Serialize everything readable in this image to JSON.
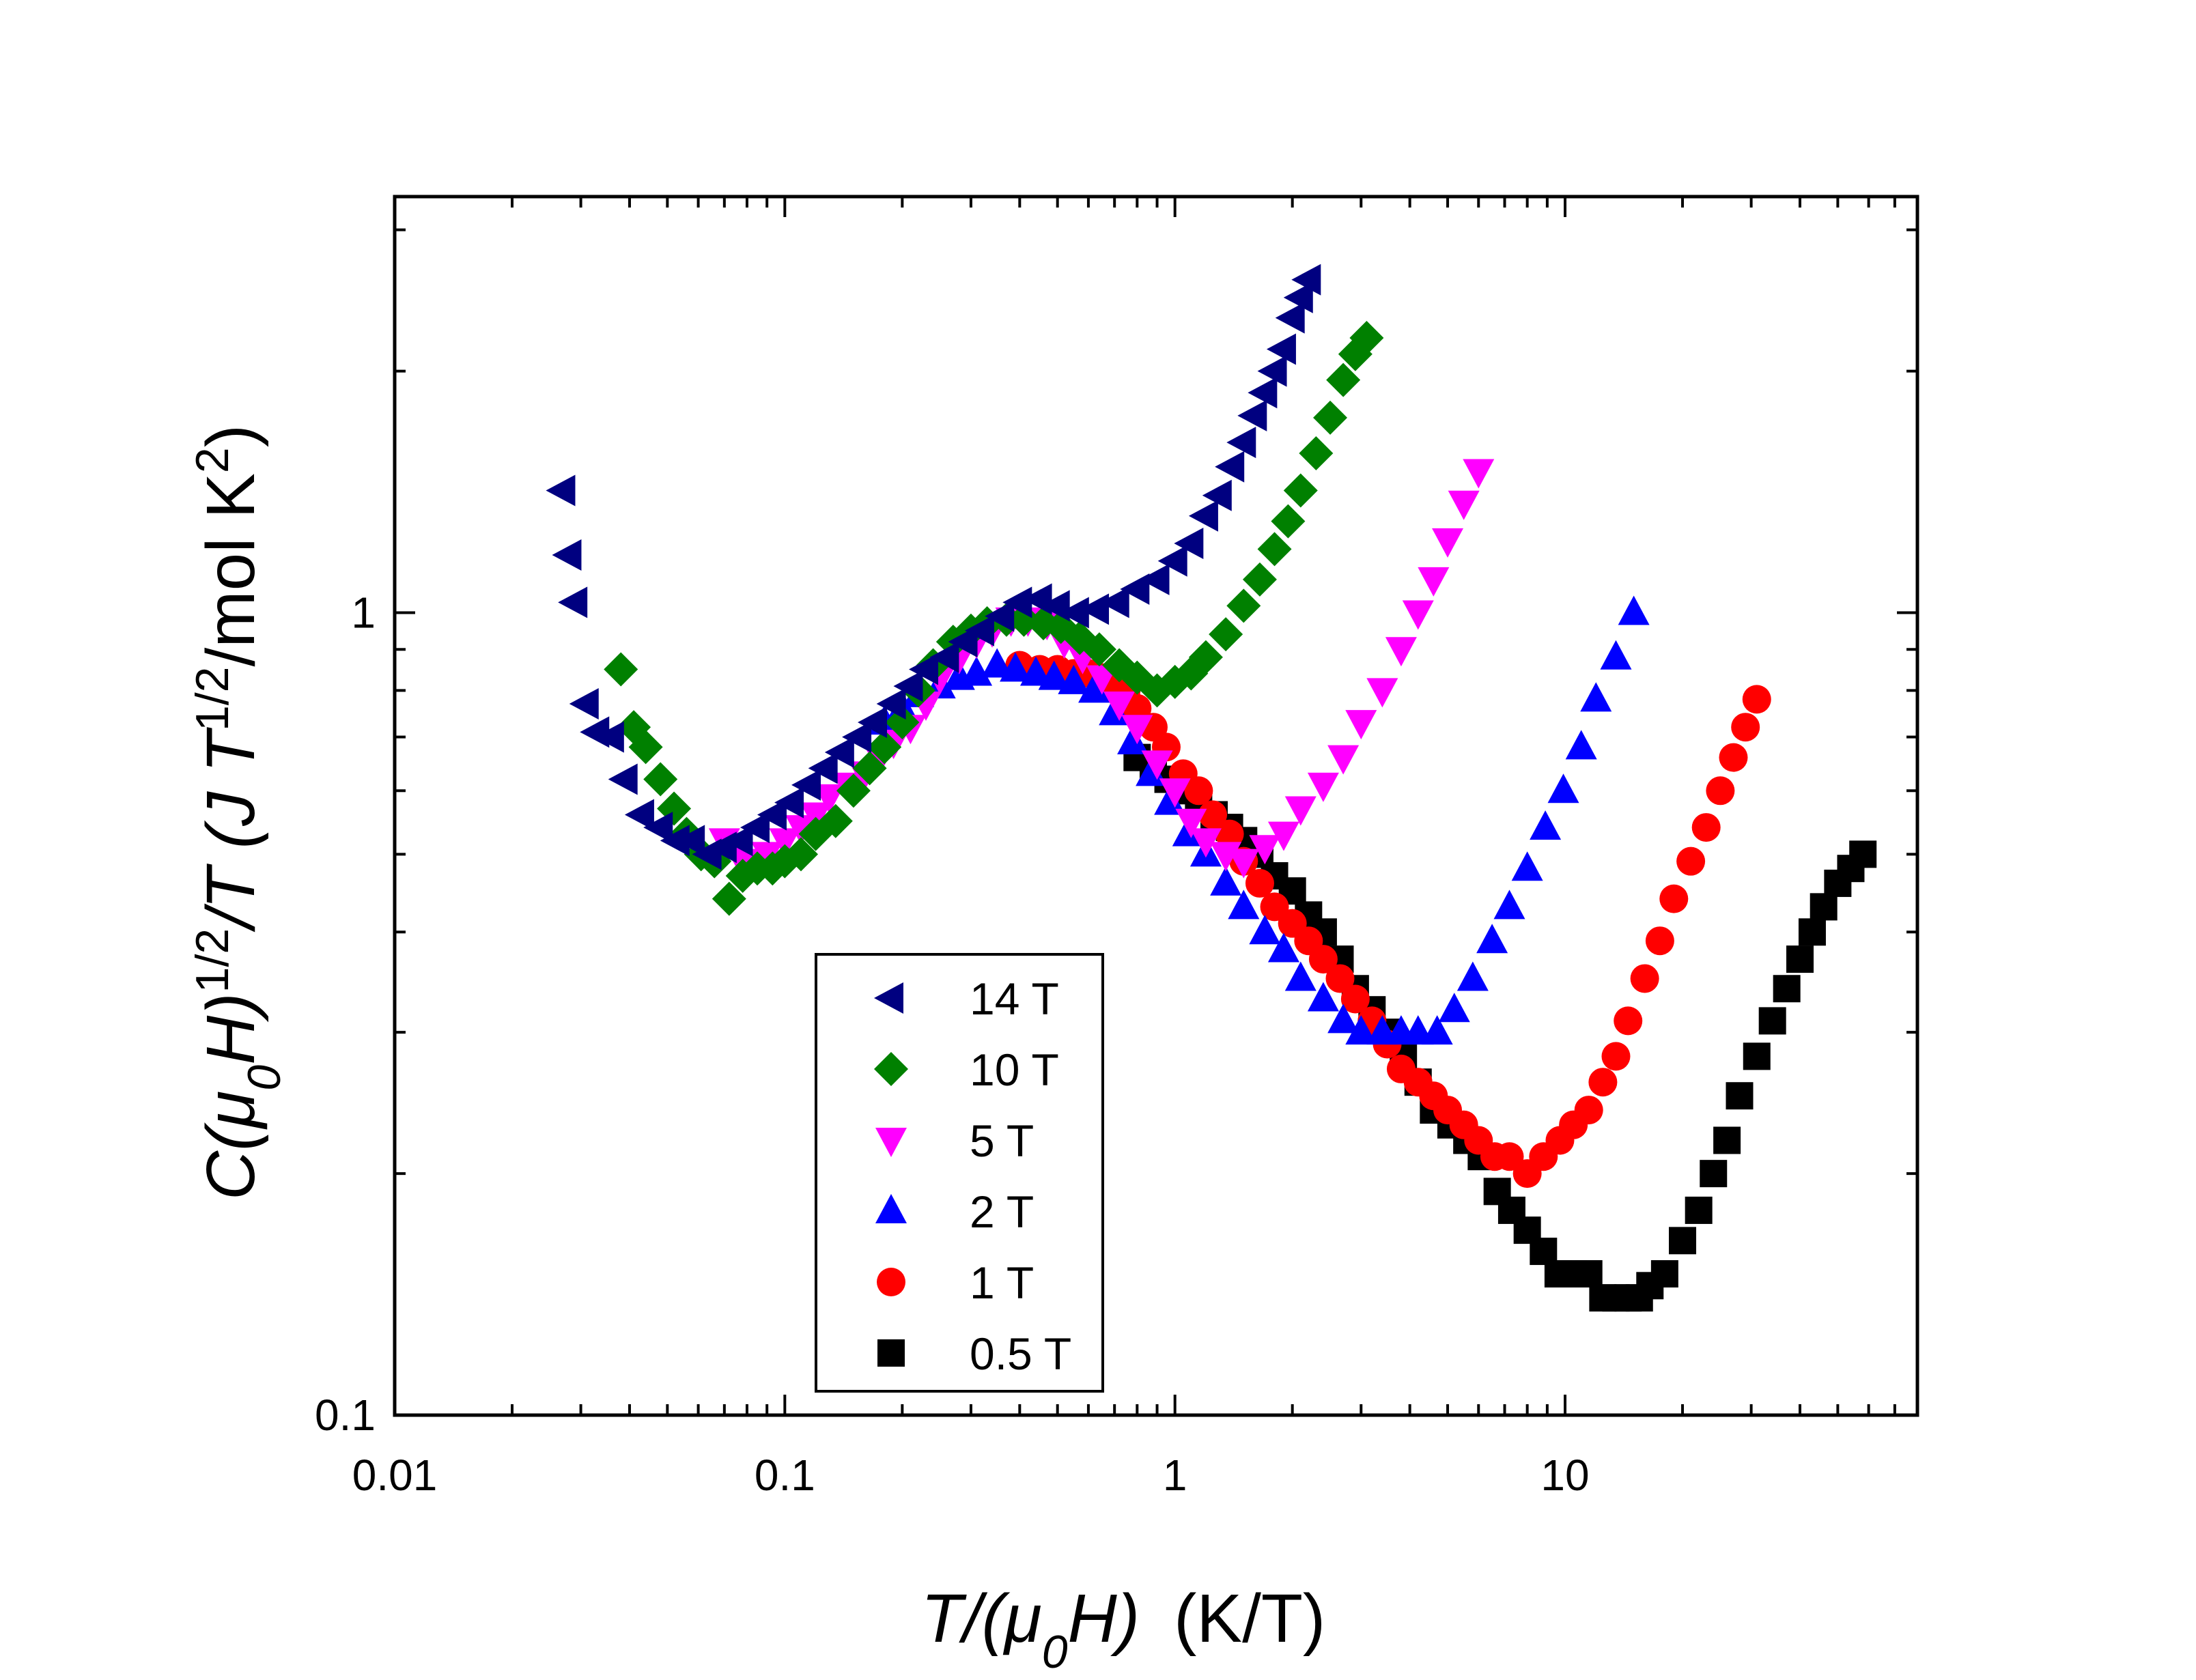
{
  "chart_data": {
    "type": "scatter",
    "title": "",
    "xlabel": {
      "main": "T/(μ",
      "sub": "0",
      "tail": "H)",
      "unit": "(K/T)"
    },
    "ylabel": {
      "p1": "C(μ",
      "sub": "0",
      "p2": "H)",
      "sup": "1/2",
      "p3": "/T (J T",
      "sup2": "1/2",
      "p4": "/mol K",
      "sup3": "2",
      "p5": ")"
    },
    "x_scale": "log",
    "y_scale": "log",
    "xlim": [
      0.01,
      80
    ],
    "ylim": [
      0.1,
      3.3
    ],
    "x_ticks": [
      {
        "value": 0.01,
        "label": "0.01"
      },
      {
        "value": 0.1,
        "label": "0.1"
      },
      {
        "value": 1,
        "label": "1"
      },
      {
        "value": 10,
        "label": "10"
      }
    ],
    "y_ticks": [
      {
        "value": 0.1,
        "label": "0.1"
      },
      {
        "value": 1,
        "label": "1"
      }
    ],
    "grid": false,
    "legend_position": "bottom-center",
    "series": [
      {
        "name": "14 T",
        "marker": "triangle-left",
        "color": "#000080",
        "x": [
          0.027,
          0.028,
          0.029,
          0.031,
          0.033,
          0.036,
          0.039,
          0.043,
          0.048,
          0.053,
          0.058,
          0.064,
          0.07,
          0.077,
          0.085,
          0.094,
          0.104,
          0.115,
          0.127,
          0.14,
          0.155,
          0.17,
          0.19,
          0.21,
          0.23,
          0.26,
          0.29,
          0.32,
          0.36,
          0.4,
          0.45,
          0.5,
          0.56,
          0.63,
          0.71,
          0.8,
          0.9,
          1.0,
          1.1,
          1.2,
          1.3,
          1.4,
          1.5,
          1.6,
          1.7,
          1.8,
          1.9,
          2.0,
          2.1,
          2.2
        ],
        "y": [
          1.42,
          1.18,
          1.03,
          0.77,
          0.71,
          0.7,
          0.62,
          0.56,
          0.54,
          0.52,
          0.52,
          0.5,
          0.51,
          0.52,
          0.54,
          0.56,
          0.58,
          0.61,
          0.64,
          0.67,
          0.7,
          0.73,
          0.77,
          0.81,
          0.85,
          0.88,
          0.92,
          0.95,
          0.99,
          1.03,
          1.04,
          1.02,
          1.0,
          1.01,
          1.03,
          1.07,
          1.1,
          1.16,
          1.22,
          1.32,
          1.4,
          1.52,
          1.63,
          1.76,
          1.88,
          2.0,
          2.13,
          2.33,
          2.47,
          2.6
        ]
      },
      {
        "name": "10 T",
        "marker": "diamond",
        "color": "#008000",
        "x": [
          0.038,
          0.041,
          0.044,
          0.048,
          0.052,
          0.056,
          0.061,
          0.066,
          0.072,
          0.078,
          0.085,
          0.093,
          0.1,
          0.11,
          0.12,
          0.135,
          0.15,
          0.165,
          0.18,
          0.2,
          0.22,
          0.24,
          0.27,
          0.3,
          0.33,
          0.37,
          0.41,
          0.46,
          0.51,
          0.57,
          0.64,
          0.72,
          0.8,
          0.9,
          1.0,
          1.1,
          1.2,
          1.35,
          1.5,
          1.65,
          1.8,
          1.95,
          2.1,
          2.3,
          2.5,
          2.7,
          2.9,
          3.1
        ],
        "y": [
          0.85,
          0.72,
          0.68,
          0.62,
          0.57,
          0.53,
          0.5,
          0.49,
          0.44,
          0.47,
          0.48,
          0.48,
          0.49,
          0.5,
          0.53,
          0.55,
          0.6,
          0.64,
          0.68,
          0.73,
          0.8,
          0.86,
          0.92,
          0.95,
          0.97,
          0.98,
          0.98,
          0.97,
          0.96,
          0.93,
          0.9,
          0.86,
          0.83,
          0.8,
          0.82,
          0.84,
          0.88,
          0.94,
          1.02,
          1.1,
          1.2,
          1.3,
          1.42,
          1.58,
          1.75,
          1.95,
          2.1,
          2.2
        ]
      },
      {
        "name": "5 T",
        "marker": "triangle-down",
        "color": "#ff00ff",
        "x": [
          0.07,
          0.076,
          0.083,
          0.09,
          0.1,
          0.11,
          0.12,
          0.13,
          0.145,
          0.16,
          0.175,
          0.19,
          0.21,
          0.23,
          0.25,
          0.28,
          0.31,
          0.34,
          0.38,
          0.42,
          0.47,
          0.52,
          0.58,
          0.65,
          0.72,
          0.8,
          0.9,
          1.0,
          1.1,
          1.2,
          1.35,
          1.5,
          1.7,
          1.9,
          2.1,
          2.4,
          2.7,
          3.0,
          3.4,
          3.8,
          4.2,
          4.6,
          5.0,
          5.5,
          6.0
        ],
        "y": [
          0.52,
          0.5,
          0.49,
          0.5,
          0.52,
          0.54,
          0.56,
          0.59,
          0.61,
          0.63,
          0.66,
          0.69,
          0.72,
          0.77,
          0.83,
          0.88,
          0.92,
          0.95,
          0.98,
          0.98,
          0.97,
          0.92,
          0.88,
          0.83,
          0.77,
          0.72,
          0.65,
          0.6,
          0.55,
          0.52,
          0.5,
          0.49,
          0.51,
          0.53,
          0.57,
          0.61,
          0.66,
          0.73,
          0.8,
          0.9,
          1.0,
          1.1,
          1.23,
          1.37,
          1.5
        ]
      },
      {
        "name": "2 T",
        "marker": "triangle-up",
        "color": "#0000ff",
        "x": [
          0.18,
          0.2,
          0.22,
          0.25,
          0.28,
          0.31,
          0.35,
          0.39,
          0.44,
          0.49,
          0.55,
          0.62,
          0.7,
          0.78,
          0.87,
          0.97,
          1.08,
          1.2,
          1.35,
          1.5,
          1.7,
          1.9,
          2.1,
          2.4,
          2.7,
          3.0,
          3.4,
          3.8,
          4.2,
          4.7,
          5.2,
          5.8,
          6.5,
          7.2,
          8.0,
          8.9,
          9.9,
          11,
          12,
          13.5,
          15
        ],
        "y": [
          0.73,
          0.76,
          0.79,
          0.81,
          0.83,
          0.84,
          0.86,
          0.85,
          0.84,
          0.83,
          0.82,
          0.8,
          0.75,
          0.69,
          0.63,
          0.58,
          0.53,
          0.5,
          0.46,
          0.43,
          0.4,
          0.38,
          0.35,
          0.33,
          0.31,
          0.3,
          0.3,
          0.3,
          0.3,
          0.3,
          0.32,
          0.35,
          0.39,
          0.43,
          0.48,
          0.54,
          0.6,
          0.68,
          0.78,
          0.88,
          1.0
        ]
      },
      {
        "name": "1 T",
        "marker": "circle",
        "color": "#ff0000",
        "x": [
          0.4,
          0.45,
          0.5,
          0.55,
          0.6,
          0.65,
          0.7,
          0.75,
          0.8,
          0.88,
          0.95,
          1.05,
          1.15,
          1.25,
          1.38,
          1.5,
          1.65,
          1.8,
          2.0,
          2.2,
          2.4,
          2.65,
          2.9,
          3.2,
          3.5,
          3.8,
          4.2,
          4.6,
          5.0,
          5.5,
          6.0,
          6.6,
          7.2,
          8.0,
          8.8,
          9.7,
          10.5,
          11.5,
          12.5,
          13.5,
          14.5,
          16,
          17.5,
          19,
          21,
          23,
          25,
          27,
          29,
          31
        ],
        "y": [
          0.86,
          0.85,
          0.85,
          0.84,
          0.84,
          0.83,
          0.82,
          0.8,
          0.76,
          0.72,
          0.68,
          0.63,
          0.6,
          0.56,
          0.53,
          0.49,
          0.46,
          0.43,
          0.41,
          0.39,
          0.37,
          0.35,
          0.33,
          0.31,
          0.29,
          0.27,
          0.26,
          0.25,
          0.24,
          0.23,
          0.22,
          0.21,
          0.21,
          0.2,
          0.21,
          0.22,
          0.23,
          0.24,
          0.26,
          0.28,
          0.31,
          0.35,
          0.39,
          0.44,
          0.49,
          0.54,
          0.6,
          0.66,
          0.72,
          0.78
        ]
      },
      {
        "name": "0.5 T",
        "marker": "square",
        "color": "#000000",
        "x": [
          0.8,
          0.88,
          0.96,
          1.05,
          1.15,
          1.26,
          1.38,
          1.5,
          1.65,
          1.8,
          2.0,
          2.2,
          2.4,
          2.65,
          2.9,
          3.2,
          3.5,
          3.85,
          4.2,
          4.6,
          5.1,
          5.6,
          6.1,
          6.7,
          7.3,
          8.0,
          8.8,
          9.6,
          10.5,
          11.5,
          12.5,
          13.5,
          14.5,
          15.5,
          16.5,
          18,
          20,
          22,
          24,
          26,
          28,
          31,
          34,
          37,
          40,
          43,
          46,
          50,
          54,
          58
        ],
        "y": [
          0.66,
          0.64,
          0.62,
          0.6,
          0.58,
          0.56,
          0.54,
          0.52,
          0.5,
          0.47,
          0.45,
          0.42,
          0.4,
          0.37,
          0.34,
          0.32,
          0.3,
          0.28,
          0.26,
          0.24,
          0.23,
          0.22,
          0.21,
          0.19,
          0.18,
          0.17,
          0.16,
          0.15,
          0.15,
          0.15,
          0.14,
          0.14,
          0.14,
          0.14,
          0.145,
          0.15,
          0.165,
          0.18,
          0.2,
          0.22,
          0.25,
          0.28,
          0.31,
          0.34,
          0.37,
          0.4,
          0.43,
          0.46,
          0.48,
          0.5
        ]
      }
    ]
  }
}
